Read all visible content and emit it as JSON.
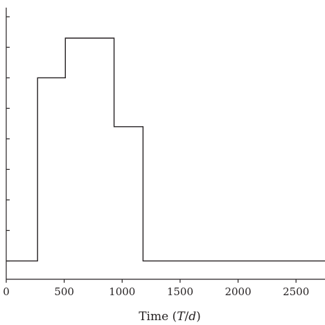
{
  "chart_data": {
    "type": "line",
    "step": true,
    "xlabel": "Time (T/d)",
    "xlabel_parts": {
      "prefix": "Time (",
      "var1": "T",
      "slash": "/",
      "var2": "d",
      "suffix": ")"
    },
    "ylabel": "",
    "xlim": [
      0,
      2750
    ],
    "ylim": [
      -0.6,
      8.3
    ],
    "xticks": [
      0,
      500,
      1000,
      1500,
      2000,
      2500
    ],
    "xtick_labels": [
      "0",
      "500",
      "1000",
      "1500",
      "2000",
      "2500"
    ],
    "yticks": [
      0,
      1,
      2,
      3,
      4,
      5,
      6,
      7,
      8
    ],
    "ytick_labels_visible": false,
    "grid": false,
    "legend": "none",
    "series": [
      {
        "x": [
          0,
          270,
          270,
          510,
          510,
          930,
          930,
          1180,
          1180,
          2750
        ],
        "y": [
          0,
          0,
          6,
          6,
          7.3,
          7.3,
          4.4,
          4.4,
          0,
          0
        ]
      }
    ],
    "colors": {
      "line": "#231f20",
      "axis": "#231f20"
    }
  }
}
